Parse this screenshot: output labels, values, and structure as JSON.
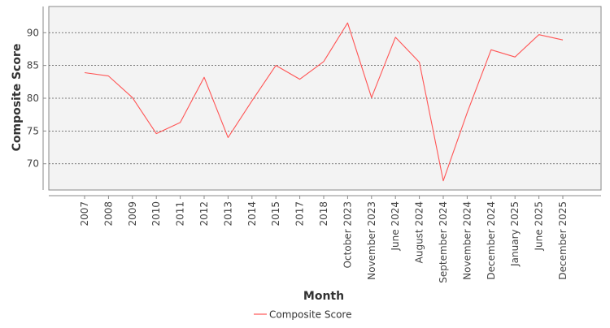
{
  "chart_data": {
    "type": "line",
    "xlabel": "Month",
    "ylabel": "Composite Score",
    "ylim": [
      66,
      94
    ],
    "yticks": [
      70,
      75,
      80,
      85,
      90
    ],
    "grid": true,
    "legend_position": "bottom-center",
    "categories": [
      "2007",
      "2008",
      "2009",
      "2010",
      "2011",
      "2012",
      "2013",
      "2014",
      "2015",
      "2017",
      "2018",
      "October 2023",
      "November 2023",
      "June 2024",
      "August 2024",
      "September 2024",
      "November 2024",
      "December 2024",
      "January 2025",
      "June 2025",
      "December 2025"
    ],
    "series": [
      {
        "name": "Composite Score",
        "color": "#ff5555",
        "values": [
          83.9,
          83.4,
          80.1,
          74.6,
          76.3,
          83.2,
          74.0,
          79.6,
          85.0,
          82.9,
          85.6,
          91.5,
          80.1,
          89.3,
          85.5,
          67.4,
          77.8,
          87.4,
          86.3,
          89.7,
          88.9
        ]
      }
    ]
  }
}
